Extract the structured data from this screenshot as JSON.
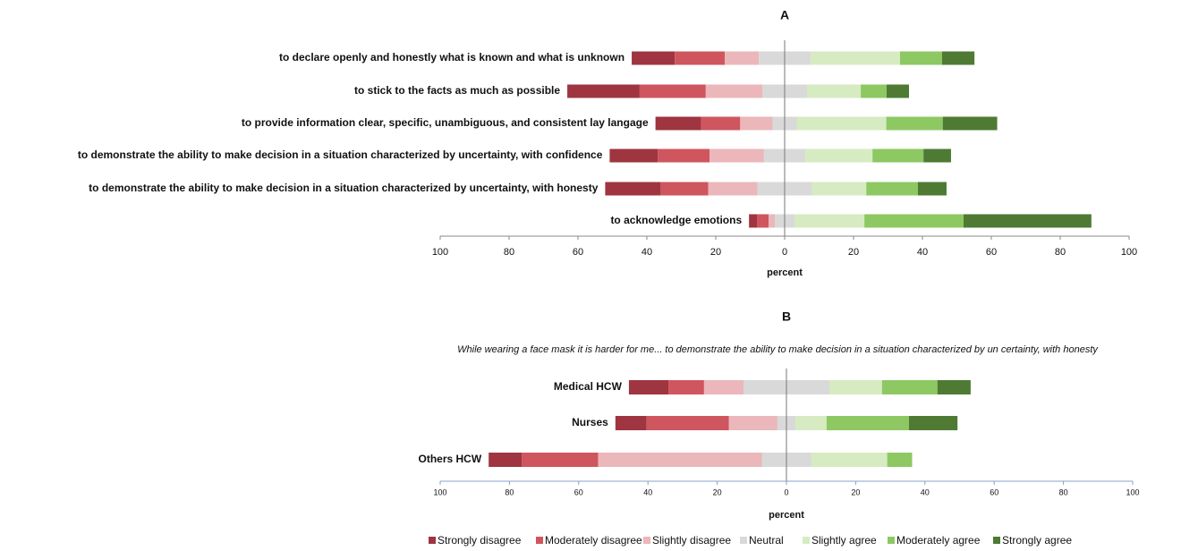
{
  "chart_data": [
    {
      "type": "diverging-bar",
      "title": "A",
      "xlabel": "percent",
      "categories": [
        "to declare openly and honestly what is known and what is unknown",
        "to stick to the facts as much as possible",
        "to provide information clear, specific, unambiguous, and consistent lay langage",
        "to demonstrate the ability to make decision in a situation characterized by uncertainty, with confidence",
        "to demonstrate the ability to make decision in a situation characterized by uncertainty, with honesty",
        "to acknowledge emotions"
      ],
      "series": [
        {
          "color": "#9e3540",
          "values": [
            12.5,
            21,
            13.2,
            14,
            16.1,
            2.3
          ]
        },
        {
          "color": "#cf565e",
          "values": [
            14.5,
            19.2,
            11.4,
            15,
            13.8,
            3.4
          ]
        },
        {
          "color": "#ebb7ba",
          "values": [
            9.9,
            16.4,
            9.4,
            15.8,
            14.3,
            1.8
          ]
        },
        {
          "color": "#d9d9d9",
          "values": [
            15,
            13,
            7,
            12,
            15.8,
            5.7
          ]
        },
        {
          "color": "#d6ebc1",
          "values": [
            26,
            15.6,
            26,
            19.5,
            15.8,
            20.3
          ]
        },
        {
          "color": "#8dc863",
          "values": [
            12.2,
            7.5,
            16.4,
            14.8,
            15,
            28.8
          ]
        },
        {
          "color": "#4e7a34",
          "values": [
            9.4,
            6.5,
            15.8,
            8,
            8.3,
            37.1
          ]
        }
      ],
      "xlim": [
        -100,
        100
      ],
      "xticks": [
        {
          "value": -100,
          "label": "100"
        },
        {
          "value": -80,
          "label": "80"
        },
        {
          "value": -60,
          "label": "60"
        },
        {
          "value": -40,
          "label": "40"
        },
        {
          "value": -20,
          "label": "20"
        },
        0,
        20,
        40,
        60,
        80,
        100
      ]
    },
    {
      "type": "diverging-bar",
      "title": "B",
      "subtitle": "While wearing a face mask it is harder for me... to demonstrate the ability to make decision in a situation characterized by un certainty, with honesty",
      "xlabel": "percent",
      "categories": [
        "Medical HCW",
        "Nurses",
        "Others HCW"
      ],
      "series": [
        {
          "name": "Strongly disagree",
          "color": "#9e3540",
          "values": [
            11.4,
            9,
            9.6
          ]
        },
        {
          "name": "Moderately disagree",
          "color": "#cf565e",
          "values": [
            10.3,
            23.8,
            22
          ]
        },
        {
          "name": "Slightly disagree",
          "color": "#ebb7ba",
          "values": [
            11.4,
            14,
            47.3
          ]
        },
        {
          "name": "Neutral",
          "color": "#d9d9d9",
          "values": [
            24.8,
            5.2,
            14.2
          ]
        },
        {
          "name": "Slightly agree",
          "color": "#d6ebc1",
          "values": [
            15.2,
            9,
            22
          ]
        },
        {
          "name": "Moderately agree",
          "color": "#8dc863",
          "values": [
            16,
            23.8,
            7.2
          ]
        },
        {
          "name": "Strongly agree",
          "color": "#4e7a34",
          "values": [
            9.6,
            14,
            0
          ]
        }
      ],
      "xlim": [
        -100,
        100
      ],
      "xticks": [
        {
          "value": -100,
          "label": "100"
        },
        {
          "value": -80,
          "label": "80"
        },
        {
          "value": -60,
          "label": "60"
        },
        {
          "value": -40,
          "label": "40"
        },
        {
          "value": -20,
          "label": "20"
        },
        0,
        20,
        40,
        60,
        80,
        100
      ]
    }
  ]
}
